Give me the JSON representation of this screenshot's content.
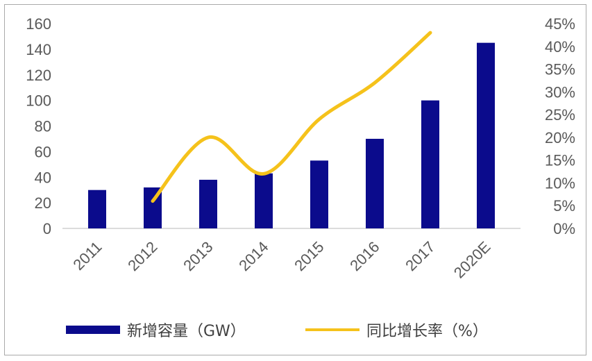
{
  "chart_data": {
    "type": "bar+line",
    "categories": [
      "2011",
      "2012",
      "2013",
      "2014",
      "2015",
      "2016",
      "2017",
      "2020E"
    ],
    "series": [
      {
        "name": "新增容量（GW）",
        "type": "bar",
        "axis": "left",
        "color": "#0b0b8c",
        "values": [
          30,
          32,
          38,
          43,
          53,
          70,
          100,
          145
        ]
      },
      {
        "name": "同比增长率（%）",
        "type": "line",
        "axis": "right",
        "color": "#f5c21b",
        "values": [
          null,
          6,
          20,
          12,
          24,
          32,
          43,
          null
        ]
      }
    ],
    "y_left": {
      "ylim": [
        0,
        160
      ],
      "ticks": [
        "0",
        "20",
        "40",
        "60",
        "80",
        "100",
        "120",
        "140",
        "160"
      ]
    },
    "y_right": {
      "ylim": [
        0,
        45
      ],
      "ticks": [
        "0%",
        "5%",
        "10%",
        "15%",
        "20%",
        "25%",
        "30%",
        "35%",
        "40%",
        "45%"
      ]
    },
    "grid": false,
    "legend_position": "bottom"
  }
}
